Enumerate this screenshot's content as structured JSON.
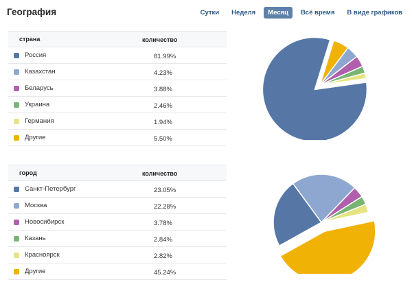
{
  "page_title": "География",
  "periods": [
    {
      "label": "Сутки",
      "active": false
    },
    {
      "label": "Неделя",
      "active": false
    },
    {
      "label": "Месяц",
      "active": true
    },
    {
      "label": "Всё время",
      "active": false
    },
    {
      "label": "В виде графиков",
      "active": false
    }
  ],
  "chart_data": [
    {
      "type": "pie",
      "columns": [
        "страна",
        "количество"
      ],
      "slices": [
        {
          "label": "Россия",
          "value": 81.99,
          "display": "81.99%",
          "color": "#5677a5"
        },
        {
          "label": "Казахстан",
          "value": 4.23,
          "display": "4.23%",
          "color": "#8ea7d1"
        },
        {
          "label": "Беларусь",
          "value": 3.88,
          "display": "3.88%",
          "color": "#b05fad"
        },
        {
          "label": "Украина",
          "value": 2.46,
          "display": "2.46%",
          "color": "#79b474"
        },
        {
          "label": "Германия",
          "value": 1.94,
          "display": "1.94%",
          "color": "#e6e482"
        },
        {
          "label": "Другие",
          "value": 5.5,
          "display": "5.50%",
          "color": "#f1b206"
        }
      ],
      "exploded": "Россия"
    },
    {
      "type": "pie",
      "columns": [
        "город",
        "количество"
      ],
      "slices": [
        {
          "label": "Санкт-Петербург",
          "value": 23.05,
          "display": "23.05%",
          "color": "#5677a5"
        },
        {
          "label": "Москва",
          "value": 22.28,
          "display": "22.28%",
          "color": "#8ea7d1"
        },
        {
          "label": "Новосибирск",
          "value": 3.78,
          "display": "3.78%",
          "color": "#b05fad"
        },
        {
          "label": "Казань",
          "value": 2.84,
          "display": "2.84%",
          "color": "#79b474"
        },
        {
          "label": "Красноярск",
          "value": 2.82,
          "display": "2.82%",
          "color": "#e6e482"
        },
        {
          "label": "Другие",
          "value": 45.24,
          "display": "45.24%",
          "color": "#f1b206"
        }
      ],
      "exploded": "Другие"
    }
  ]
}
